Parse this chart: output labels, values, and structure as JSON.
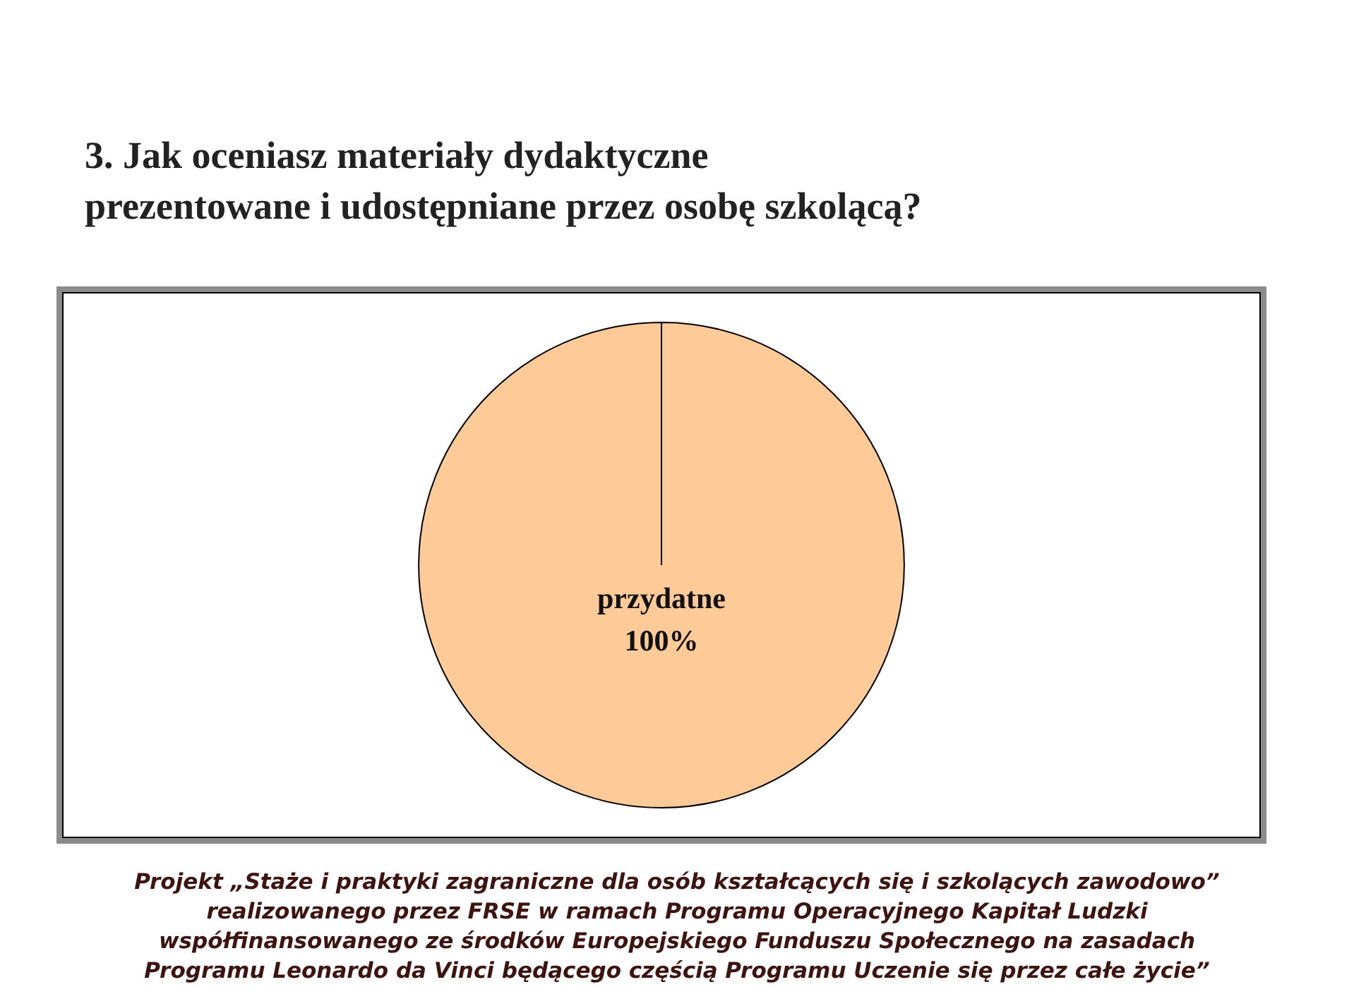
{
  "chart_data": {
    "type": "pie",
    "title": "3. Jak oceniasz materiały dydaktyczne\nprezentowane i udostępniane przez osobę szkolącą?",
    "categories": [
      "przydatne"
    ],
    "values": [
      100
    ],
    "colors": [
      "#fdca98"
    ],
    "value_labels": [
      "100%"
    ],
    "legend": false,
    "annotations": [
      "Projekt „Staże i praktyki zagraniczne dla osób kształcących się i szkolących zawodowo”\nrealizowanego przez FRSE w ramach Programu Operacyjnego Kapitał Ludzki\nwspółfinansowanego ze środków Europejskiego Funduszu Społecznego na zasadach\nProgramu Leonardo da Vinci będącego częścią Programu Uczenie się przez całe życie”"
    ]
  }
}
